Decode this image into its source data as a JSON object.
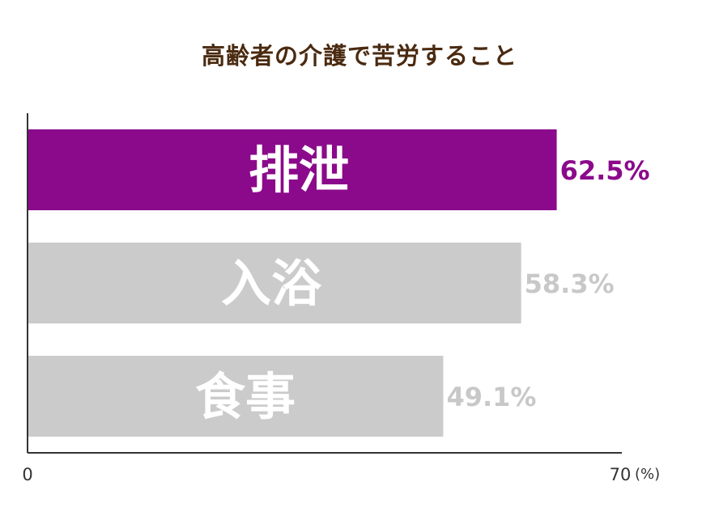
{
  "chart_data": {
    "type": "bar",
    "orientation": "horizontal",
    "title": "高齢者の介護で苦労すること",
    "categories": [
      "排泄",
      "入浴",
      "食事"
    ],
    "values": [
      62.5,
      58.3,
      49.1
    ],
    "value_labels": [
      "62.5%",
      "58.3%",
      "49.1%"
    ],
    "xlim": [
      0,
      70
    ],
    "x_ticks": [
      "0",
      "70"
    ],
    "x_unit": "(%)",
    "grid": false,
    "legend": "none",
    "highlight_index": 0
  },
  "colors": {
    "highlight_bar": "#8b0a8b",
    "highlight_text": "#8b0a8b",
    "normal_bar": "#cbcbcb",
    "normal_text": "#c8c8c8",
    "bar_label": "#ffffff",
    "title": "#4a2a10",
    "axis": "#333333"
  }
}
